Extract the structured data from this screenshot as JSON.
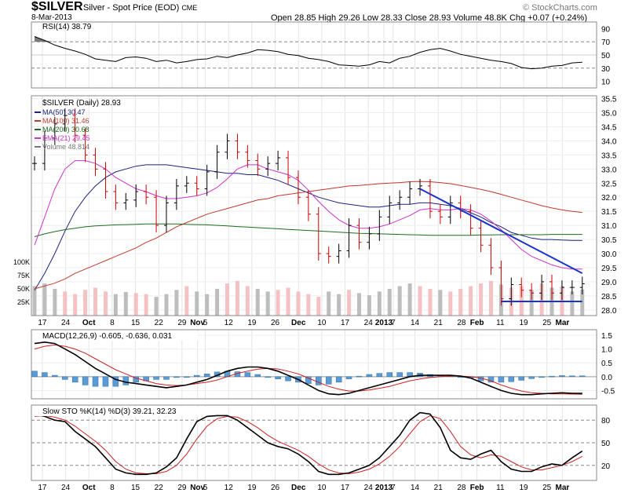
{
  "header": {
    "ticker": "$SILVER",
    "description": "Silver - Spot Price (EOD)",
    "exchange": "CME",
    "date": "8-Mar-2013",
    "quote": "Open 28.85  High 29.26  Low 28.33  Close 28.93  Volume 48.8K  Chg +0.07 (+0.24%)",
    "watermark": "© StockCharts.com",
    "quote_color": "#000000",
    "change_color": "#008000"
  },
  "chart_data": [
    {
      "panel": "rsi",
      "type": "line",
      "title": "RSI(14) 38.79",
      "y_ticks": [
        90,
        70,
        50,
        30,
        10
      ],
      "ylim": [
        0,
        100
      ],
      "overbought": 70,
      "oversold": 30,
      "series": [
        {
          "name": "RSI(14)",
          "color": "#000000",
          "values": [
            78,
            72,
            65,
            60,
            56,
            51,
            44,
            42,
            40,
            46,
            47,
            45,
            40,
            42,
            38,
            40,
            43,
            44,
            48,
            46,
            50,
            53,
            58,
            57,
            55,
            51,
            49,
            45,
            43,
            40,
            35,
            34,
            33,
            35,
            40,
            38,
            45,
            48,
            54,
            58,
            60,
            56,
            51,
            48,
            45,
            42,
            40,
            37,
            31,
            29,
            30,
            33,
            34,
            38,
            39
          ]
        }
      ]
    },
    {
      "panel": "price",
      "type": "ohlc",
      "title": "$SILVER (Daily) 28.93",
      "ylim": [
        27.8,
        35.6
      ],
      "y_ticks": [
        35.5,
        35.0,
        34.5,
        34.0,
        33.5,
        33.0,
        32.5,
        32.0,
        31.5,
        31.0,
        30.5,
        30.0,
        29.5,
        29.0,
        28.5,
        28.0
      ],
      "volume_ticks": [
        "100K",
        "75K",
        "50K",
        "25K"
      ],
      "legend": [
        {
          "label": "MA(50) 30.47",
          "color": "#1a237e"
        },
        {
          "label": "MA(100) 31.46",
          "color": "#c0392b"
        },
        {
          "label": "MA(200) 30.68",
          "color": "#1e6b1e"
        },
        {
          "label": "EMA(21) 29.45",
          "color": "#cc33cc"
        },
        {
          "label": "Volume 48,814",
          "color": "#777777"
        }
      ],
      "close": [
        33.2,
        34.1,
        34.6,
        34.9,
        34.2,
        33.5,
        33.0,
        32.2,
        31.8,
        31.9,
        32.2,
        32.0,
        31.0,
        31.8,
        32.4,
        32.5,
        32.3,
        32.9,
        33.6,
        34.0,
        33.6,
        33.3,
        33.0,
        33.2,
        33.4,
        32.7,
        32.0,
        31.4,
        30.0,
        29.9,
        30.1,
        31.0,
        30.4,
        30.7,
        31.3,
        31.8,
        32.0,
        32.3,
        32.4,
        31.5,
        31.3,
        31.8,
        31.5,
        30.9,
        30.3,
        29.5,
        28.4,
        28.9,
        28.7,
        28.6,
        29.0,
        28.6,
        28.8,
        28.8,
        28.93
      ],
      "series": [
        {
          "name": "MA(50)",
          "color": "#1a237e",
          "values": [
            28.7,
            29.3,
            30.0,
            30.8,
            31.5,
            32.0,
            32.4,
            32.7,
            32.9,
            33.0,
            33.1,
            33.15,
            33.15,
            33.15,
            33.1,
            33.05,
            33.0,
            32.95,
            32.9,
            32.85,
            32.85,
            32.8,
            32.8,
            32.7,
            32.6,
            32.45,
            32.3,
            32.15,
            32.0,
            31.9,
            31.8,
            31.75,
            31.7,
            31.65,
            31.65,
            31.7,
            31.75,
            31.75,
            31.8,
            31.8,
            31.75,
            31.7,
            31.6,
            31.45,
            31.3,
            31.1,
            30.95,
            30.75,
            30.65,
            30.55,
            30.5,
            30.5,
            30.48,
            30.47,
            30.47
          ]
        },
        {
          "name": "MA(100)",
          "color": "#c0392b",
          "values": [
            28.75,
            28.85,
            28.95,
            29.1,
            29.3,
            29.45,
            29.6,
            29.75,
            29.9,
            30.05,
            30.2,
            30.4,
            30.55,
            30.75,
            30.95,
            31.1,
            31.25,
            31.4,
            31.5,
            31.6,
            31.7,
            31.8,
            31.9,
            31.95,
            32.05,
            32.1,
            32.15,
            32.2,
            32.25,
            32.3,
            32.35,
            32.4,
            32.42,
            32.45,
            32.48,
            32.5,
            32.52,
            32.55,
            32.56,
            32.55,
            32.52,
            32.48,
            32.42,
            32.35,
            32.28,
            32.2,
            32.1,
            32.0,
            31.9,
            31.8,
            31.7,
            31.62,
            31.55,
            31.5,
            31.46
          ]
        },
        {
          "name": "MA(200)",
          "color": "#1e6b1e",
          "values": [
            30.6,
            30.7,
            30.78,
            30.85,
            30.9,
            30.95,
            30.98,
            31.0,
            31.02,
            31.03,
            31.04,
            31.05,
            31.05,
            31.05,
            31.05,
            31.04,
            31.03,
            31.02,
            31.0,
            30.98,
            30.96,
            30.94,
            30.92,
            30.9,
            30.88,
            30.86,
            30.84,
            30.82,
            30.8,
            30.78,
            30.76,
            30.74,
            30.72,
            30.71,
            30.7,
            30.69,
            30.68,
            30.67,
            30.66,
            30.65,
            30.65,
            30.65,
            30.65,
            30.65,
            30.66,
            30.66,
            30.67,
            30.67,
            30.67,
            30.67,
            30.67,
            30.68,
            30.68,
            30.68,
            30.68
          ]
        },
        {
          "name": "EMA(21)",
          "color": "#cc33cc",
          "values": [
            30.3,
            31.3,
            32.3,
            33.0,
            33.3,
            33.3,
            33.2,
            33.0,
            32.7,
            32.5,
            32.3,
            32.2,
            32.05,
            31.95,
            31.95,
            32.0,
            32.05,
            32.15,
            32.35,
            32.65,
            33.0,
            33.15,
            33.15,
            33.0,
            32.9,
            32.8,
            32.6,
            32.25,
            31.85,
            31.5,
            31.2,
            31.0,
            30.9,
            30.9,
            30.95,
            31.05,
            31.2,
            31.35,
            31.55,
            31.6,
            31.55,
            31.55,
            31.6,
            31.55,
            31.4,
            31.15,
            30.85,
            30.5,
            30.15,
            29.9,
            29.75,
            29.6,
            29.5,
            29.45,
            29.45
          ]
        }
      ],
      "volume": [
        55,
        60,
        50,
        45,
        40,
        48,
        52,
        45,
        40,
        44,
        42,
        40,
        35,
        40,
        48,
        55,
        45,
        40,
        50,
        60,
        65,
        55,
        50,
        45,
        48,
        52,
        45,
        40,
        35,
        45,
        40,
        48,
        42,
        38,
        45,
        50,
        55,
        60,
        55,
        50,
        48,
        45,
        50,
        55,
        60,
        65,
        58,
        52,
        55,
        48,
        60,
        52,
        55,
        45,
        48.8
      ],
      "volume_up": [
        true,
        true,
        true,
        false,
        false,
        false,
        false,
        false,
        true,
        true,
        false,
        false,
        true,
        true,
        true,
        false,
        true,
        true,
        true,
        false,
        false,
        false,
        true,
        true,
        false,
        false,
        false,
        false,
        false,
        true,
        true,
        false,
        true,
        true,
        true,
        true,
        true,
        true,
        false,
        false,
        true,
        false,
        false,
        false,
        false,
        false,
        true,
        false,
        false,
        true,
        false,
        true,
        false,
        true,
        true
      ],
      "trendlines": [
        {
          "color": "#1a33cc",
          "points": [
            [
              38,
              32.3
            ],
            [
              54,
              29.3
            ]
          ]
        },
        {
          "color": "#1a33cc",
          "points": [
            [
              46,
              28.3
            ],
            [
              54,
              28.3
            ]
          ]
        }
      ]
    },
    {
      "panel": "macd",
      "type": "line",
      "title": "MACD(12,26,9) -0.605, -0.636, 0.031",
      "ylim": [
        -0.8,
        1.7
      ],
      "y_ticks": [
        1.5,
        1.0,
        0.5,
        0.0,
        -0.5
      ],
      "series": [
        {
          "name": "MACD",
          "color": "#000000",
          "values": [
            1.2,
            1.25,
            1.2,
            1.0,
            0.8,
            0.55,
            0.3,
            0.1,
            -0.1,
            -0.2,
            -0.25,
            -0.3,
            -0.35,
            -0.4,
            -0.35,
            -0.3,
            -0.2,
            -0.1,
            0.05,
            0.2,
            0.3,
            0.35,
            0.35,
            0.3,
            0.2,
            0.05,
            -0.1,
            -0.3,
            -0.5,
            -0.62,
            -0.65,
            -0.6,
            -0.5,
            -0.4,
            -0.3,
            -0.2,
            -0.1,
            0.0,
            0.05,
            0.05,
            0.05,
            0.05,
            0.02,
            -0.05,
            -0.2,
            -0.35,
            -0.5,
            -0.6,
            -0.65,
            -0.65,
            -0.62,
            -0.6,
            -0.58,
            -0.6,
            -0.605
          ]
        },
        {
          "name": "Signal",
          "color": "#cc2222",
          "values": [
            1.0,
            1.1,
            1.15,
            1.1,
            1.0,
            0.85,
            0.65,
            0.45,
            0.25,
            0.1,
            -0.05,
            -0.15,
            -0.25,
            -0.3,
            -0.32,
            -0.3,
            -0.25,
            -0.2,
            -0.12,
            0.0,
            0.12,
            0.2,
            0.27,
            0.3,
            0.28,
            0.2,
            0.1,
            -0.05,
            -0.2,
            -0.35,
            -0.45,
            -0.52,
            -0.52,
            -0.48,
            -0.42,
            -0.35,
            -0.25,
            -0.15,
            -0.08,
            -0.03,
            0.0,
            0.02,
            0.02,
            0.0,
            -0.05,
            -0.15,
            -0.3,
            -0.42,
            -0.52,
            -0.58,
            -0.6,
            -0.62,
            -0.62,
            -0.63,
            -0.636
          ]
        }
      ]
    },
    {
      "panel": "sto",
      "type": "line",
      "title": "Slow STO %K(14) %D(3) 39.21, 32.23",
      "ylim": [
        0,
        100
      ],
      "y_ticks": [
        80,
        50,
        20
      ],
      "series": [
        {
          "name": "%K",
          "color": "#000000",
          "values": [
            88,
            85,
            80,
            78,
            65,
            55,
            45,
            30,
            15,
            10,
            8,
            8,
            10,
            18,
            30,
            55,
            78,
            85,
            86,
            86,
            80,
            70,
            60,
            50,
            45,
            42,
            35,
            25,
            12,
            8,
            8,
            10,
            15,
            20,
            30,
            45,
            60,
            80,
            90,
            88,
            70,
            40,
            30,
            28,
            35,
            40,
            25,
            15,
            12,
            12,
            18,
            22,
            20,
            30,
            39
          ]
        },
        {
          "name": "%D",
          "color": "#cc2222",
          "values": [
            85,
            86,
            84,
            80,
            72,
            62,
            52,
            40,
            25,
            15,
            10,
            9,
            9,
            12,
            20,
            35,
            55,
            72,
            82,
            85,
            84,
            78,
            70,
            60,
            52,
            46,
            40,
            32,
            22,
            14,
            10,
            9,
            11,
            15,
            22,
            32,
            45,
            62,
            78,
            86,
            82,
            65,
            45,
            34,
            30,
            34,
            32,
            25,
            18,
            14,
            14,
            17,
            20,
            25,
            32
          ]
        }
      ]
    }
  ],
  "x_axis": {
    "labels": [
      {
        "i": 1,
        "text": "17",
        "bold": false
      },
      {
        "i": 4,
        "text": "24",
        "bold": false
      },
      {
        "i": 7,
        "text": "Oct",
        "bold": true
      },
      {
        "i": 10,
        "text": "8",
        "bold": false
      },
      {
        "i": 13,
        "text": "15",
        "bold": false
      },
      {
        "i": 16,
        "text": "22",
        "bold": false
      },
      {
        "i": 19,
        "text": "29",
        "bold": false
      },
      {
        "i": 21,
        "text": "Nov",
        "bold": true
      },
      {
        "i": 22,
        "text": "5",
        "bold": false
      },
      {
        "i": 25,
        "text": "12",
        "bold": false
      },
      {
        "i": 28,
        "text": "19",
        "bold": false
      },
      {
        "i": 31,
        "text": "26",
        "bold": false
      },
      {
        "i": 34,
        "text": "Dec",
        "bold": true
      },
      {
        "i": 37,
        "text": "10",
        "bold": false
      },
      {
        "i": 40,
        "text": "17",
        "bold": false
      },
      {
        "i": 43,
        "text": "24",
        "bold": false
      },
      {
        "i": 45,
        "text": "2013",
        "bold": true
      },
      {
        "i": 46.2,
        "text": "7",
        "bold": false
      },
      {
        "i": 49,
        "text": "14",
        "bold": false
      },
      {
        "i": 52,
        "text": "21",
        "bold": false
      },
      {
        "i": 55,
        "text": "28",
        "bold": false
      },
      {
        "i": 57,
        "text": "Feb",
        "bold": true
      },
      {
        "i": 60,
        "text": "11",
        "bold": false
      },
      {
        "i": 63,
        "text": "19",
        "bold": false
      },
      {
        "i": 66,
        "text": "25",
        "bold": false
      },
      {
        "i": 68,
        "text": "Mar",
        "bold": true
      }
    ],
    "index_range": [
      0,
      72
    ]
  }
}
